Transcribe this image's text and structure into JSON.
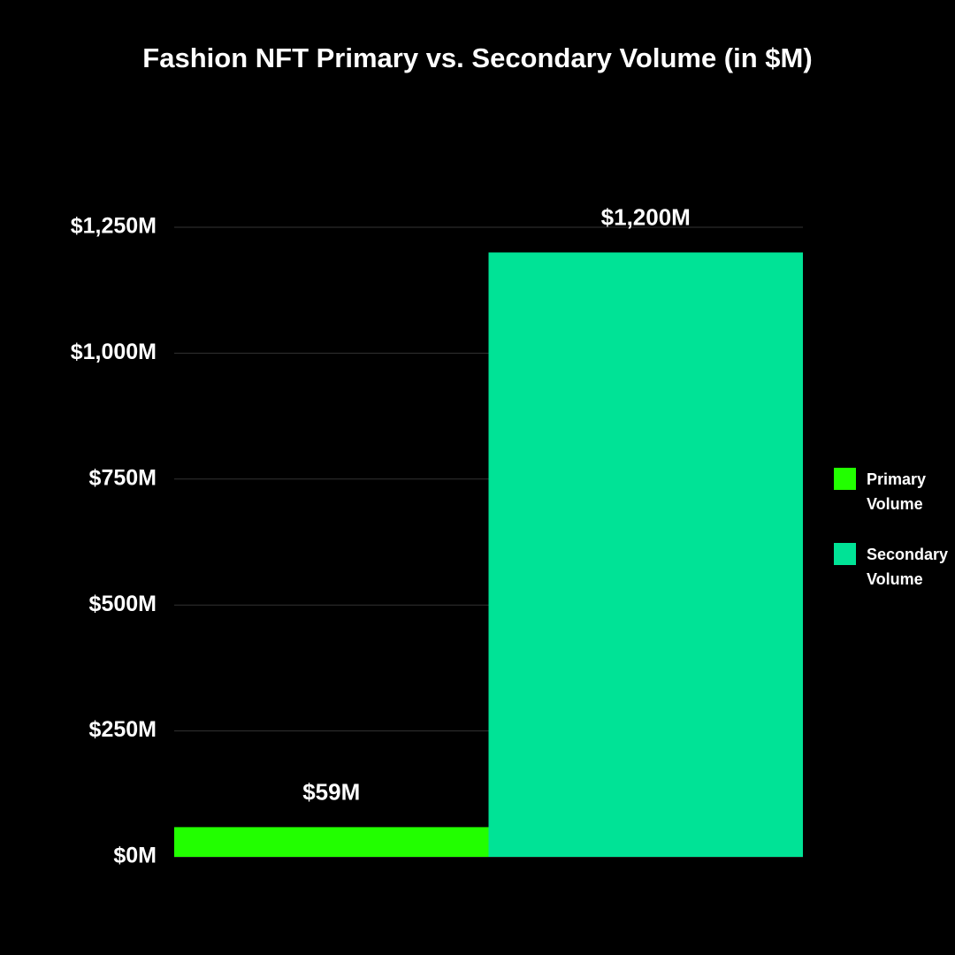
{
  "chart_data": {
    "type": "bar",
    "title": "Fashion NFT Primary vs. Secondary Volume (in $M)",
    "categories": [
      null
    ],
    "series": [
      {
        "name": "Primary Volume",
        "color": "#22ff00",
        "values": [
          59
        ],
        "value_labels": [
          "$59M"
        ]
      },
      {
        "name": "Secondary Volume",
        "color": "#00e396",
        "values": [
          1200
        ],
        "value_labels": [
          "$1,200M"
        ]
      }
    ],
    "ylim": [
      0,
      1250
    ],
    "yticks": [
      {
        "value": 0,
        "label": "$0M"
      },
      {
        "value": 250,
        "label": "$250M"
      },
      {
        "value": 500,
        "label": "$500M"
      },
      {
        "value": 750,
        "label": "$750M"
      },
      {
        "value": 1000,
        "label": "$1,000M"
      },
      {
        "value": 1250,
        "label": "$1,250M"
      }
    ],
    "grid": true,
    "legend": "right"
  }
}
